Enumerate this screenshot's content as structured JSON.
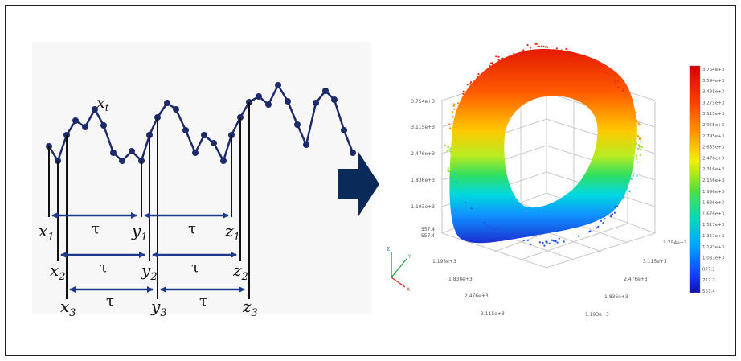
{
  "left_panel": {
    "series_label": "x",
    "series_label_sub": "t",
    "tau_symbol": "τ",
    "rows": [
      {
        "x_base": "x",
        "x_sub": "1",
        "y_base": "y",
        "y_sub": "1",
        "z_base": "z",
        "z_sub": "1"
      },
      {
        "x_base": "x",
        "x_sub": "2",
        "y_base": "y",
        "y_sub": "2",
        "z_base": "z",
        "z_sub": "2"
      },
      {
        "x_base": "x",
        "x_sub": "3",
        "y_base": "y",
        "y_sub": "3",
        "z_base": "z",
        "z_sub": "3"
      }
    ]
  },
  "arrow": {
    "color": "#0a2a5a"
  },
  "plot3d": {
    "z_ticks": [
      "3.754e+3",
      "3.115e+3",
      "2.476e+3",
      "1.836e+3",
      "1.193e+3",
      "557.4",
      "557.4"
    ],
    "x_ticks": [
      "1.193e+3",
      "1.836e+3",
      "2.476e+3",
      "3.115e+3"
    ],
    "y_ticks": [
      "3.754e+3",
      "3.115e+3",
      "2.476e+3",
      "1.836e+3",
      "1.193e+3"
    ],
    "axes": {
      "z": "Z",
      "y": "Y",
      "x": "X"
    },
    "colorbar_labels": [
      "3.754e+3",
      "3.594e+3",
      "3.435e+3",
      "3.275e+3",
      "3.115e+3",
      "2.955e+3",
      "2.795e+3",
      "2.635e+3",
      "2.476e+3",
      "2.316e+3",
      "2.156e+3",
      "1.996e+3",
      "1.836e+3",
      "1.676e+3",
      "1.517e+3",
      "1.357e+3",
      "1.193e+3",
      "1.033e+3",
      "877.1",
      "717.2",
      "557.4"
    ]
  }
}
